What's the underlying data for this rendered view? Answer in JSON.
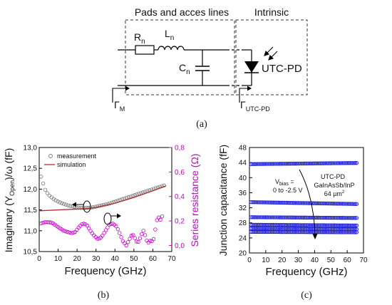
{
  "panel_a": {
    "box_pads_label": "Pads and acces lines",
    "box_intrinsic_label": "Intrinsic",
    "rn_main": "R",
    "rn_sub": "n",
    "ln_main": "L",
    "ln_sub": "n",
    "cn_main": "C",
    "cn_sub": "n",
    "diode_label": "UTC-PD",
    "gamma_m_sub": "M",
    "gamma_utc_sub": "UTC-PD",
    "caption": "(a)"
  },
  "panel_b": {
    "caption": "(b)",
    "legend_measurement": "measurement",
    "legend_simulation": "simulation"
  },
  "panel_c": {
    "caption": "(c)",
    "annot_vbias_main": "V",
    "annot_vbias_sub": "bias",
    "annot_vbias_eq": "=",
    "annot_vbias_range": "0 to -2.5 V",
    "annot_device_1": "UTC-PD",
    "annot_device_2": "GaInAsSb/InP",
    "annot_area": "64 µm",
    "annot_area_sup": "2"
  },
  "chart_data": [
    {
      "type": "scatter",
      "panel": "b",
      "xlabel": "Frequency (GHz)",
      "ylabel": "Imaginary (Y_Open)/ω (fF)",
      "y2label": "Series resistance (Ω)",
      "xlim": [
        0,
        70
      ],
      "ylim": [
        10.5,
        13.0
      ],
      "y2lim": [
        -0.05,
        0.8
      ],
      "x_ticks": [
        "0",
        "10",
        "20",
        "30",
        "40",
        "50",
        "60",
        "70"
      ],
      "y_ticks": [
        "10,5",
        "11,0",
        "11,5",
        "12,0",
        "12,5",
        "13,0"
      ],
      "y2_ticks": [
        "0,0",
        "0,2",
        "0,4",
        "0,6",
        "0,8"
      ],
      "legend": "top-left",
      "series": [
        {
          "name": "measurement",
          "axis": "left",
          "style": "open-circle",
          "color": "#777777",
          "x": [
            1,
            2,
            3,
            4,
            5,
            6,
            8,
            10,
            12,
            14,
            16,
            18,
            20,
            22,
            24,
            26,
            28,
            30,
            32,
            34,
            36,
            38,
            40,
            42,
            44,
            46,
            48,
            50,
            52,
            54,
            56,
            58,
            60,
            62,
            64,
            66
          ],
          "y": [
            12.3,
            12.15,
            12.0,
            11.92,
            11.86,
            11.82,
            11.75,
            11.7,
            11.66,
            11.63,
            11.6,
            11.58,
            11.56,
            11.55,
            11.55,
            11.55,
            11.56,
            11.58,
            11.6,
            11.62,
            11.64,
            11.67,
            11.7,
            11.73,
            11.76,
            11.79,
            11.82,
            11.85,
            11.88,
            11.91,
            11.94,
            11.97,
            12.0,
            12.03,
            12.06,
            12.09
          ]
        },
        {
          "name": "simulation",
          "axis": "left",
          "style": "line",
          "color": "#b03030",
          "x": [
            0,
            10,
            20,
            25,
            30,
            40,
            50,
            60,
            67
          ],
          "y": [
            11.48,
            11.5,
            11.52,
            11.53,
            11.56,
            11.66,
            11.8,
            11.96,
            12.08
          ]
        },
        {
          "name": "",
          "axis": "right",
          "style": "open-circle",
          "color": "#cc00cc",
          "x": [
            1,
            3,
            5,
            7,
            9,
            11,
            13,
            15,
            17,
            19,
            21,
            23,
            25,
            27,
            29,
            31,
            33,
            35,
            37,
            39,
            41,
            43,
            44,
            45,
            46,
            47,
            48,
            49,
            50,
            51,
            52,
            53,
            54,
            55,
            56,
            57,
            58,
            59,
            60,
            61,
            62,
            63,
            64,
            65
          ],
          "y": [
            0.18,
            0.19,
            0.19,
            0.185,
            0.16,
            0.14,
            0.12,
            0.11,
            0.1,
            0.11,
            0.15,
            0.18,
            0.17,
            0.12,
            0.08,
            0.05,
            0.07,
            0.12,
            0.17,
            0.18,
            0.15,
            0.08,
            0.04,
            0.02,
            0.0,
            0.03,
            0.06,
            0.09,
            0.08,
            0.04,
            0.02,
            0.05,
            0.09,
            0.12,
            0.08,
            0.03,
            0.02,
            0.05,
            0.02,
            0.1,
            0.2,
            0.23,
            0.21,
            0.24
          ]
        }
      ],
      "annotations": [
        {
          "at": [
            27,
            11.57
          ],
          "arrow": "left",
          "target": "left-axis"
        },
        {
          "at": [
            38,
            0.19
          ],
          "arrow": "right",
          "target": "right-axis"
        }
      ]
    },
    {
      "type": "scatter",
      "panel": "c",
      "xlabel": "Frequency (GHz)",
      "ylabel": "Junction capacitance (fF)",
      "xlim": [
        0,
        70
      ],
      "ylim": [
        20,
        48
      ],
      "x_ticks": [
        "0",
        "10",
        "20",
        "30",
        "40",
        "50",
        "60",
        "70"
      ],
      "y_ticks": [
        "20",
        "24",
        "28",
        "32",
        "36",
        "40",
        "44",
        "48"
      ],
      "color": "#1a1adc",
      "series": [
        {
          "bias_order": 1,
          "x": [
            1,
            66
          ],
          "y": [
            43.6,
            43.9
          ]
        },
        {
          "bias_order": 2,
          "x": [
            1,
            66
          ],
          "y": [
            33.5,
            33.0
          ]
        },
        {
          "bias_order": 3,
          "x": [
            1,
            66
          ],
          "y": [
            29.5,
            29.3
          ]
        },
        {
          "bias_order": 4,
          "x": [
            1,
            66
          ],
          "y": [
            27.5,
            27.3
          ]
        },
        {
          "bias_order": 5,
          "x": [
            1,
            66
          ],
          "y": [
            26.5,
            26.3
          ]
        },
        {
          "bias_order": 6,
          "x": [
            1,
            66
          ],
          "y": [
            25.6,
            25.5
          ]
        }
      ],
      "annotations": [
        {
          "text": "V_bias = 0 to -2.5 V",
          "arrow_from": [
            30,
            45
          ],
          "arrow_to": [
            37,
            25
          ]
        }
      ]
    }
  ]
}
